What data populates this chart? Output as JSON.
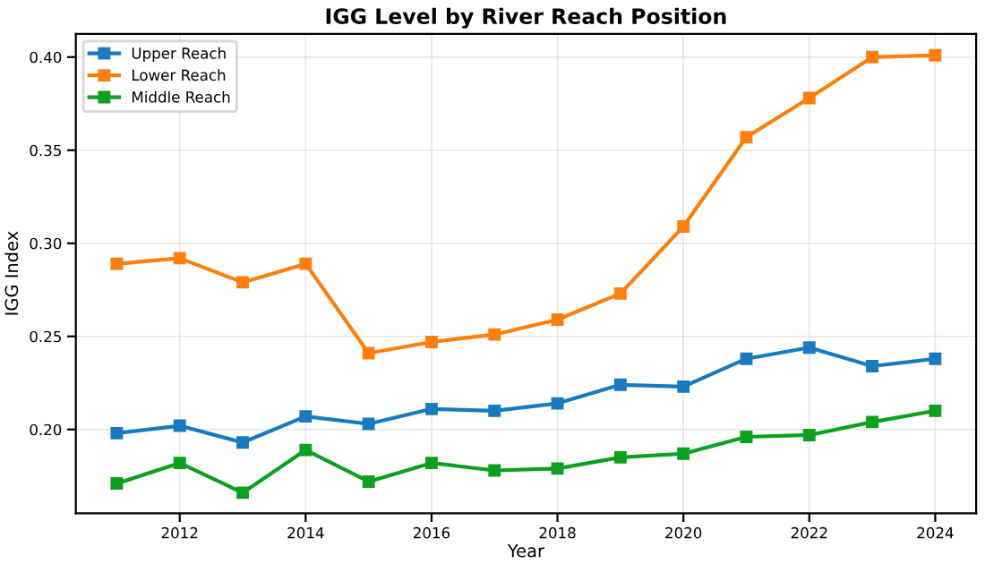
{
  "chart_data": {
    "type": "line",
    "title": "IGG Level by River Reach Position",
    "xlabel": "Year",
    "ylabel": "IGG Index",
    "x": [
      2011,
      2012,
      2013,
      2014,
      2015,
      2016,
      2017,
      2018,
      2019,
      2020,
      2021,
      2022,
      2023,
      2024
    ],
    "series": [
      {
        "name": "Upper Reach",
        "color": "#1a7abf",
        "values": [
          0.198,
          0.202,
          0.193,
          0.207,
          0.203,
          0.211,
          0.21,
          0.214,
          0.224,
          0.223,
          0.238,
          0.244,
          0.234,
          0.238
        ]
      },
      {
        "name": "Lower Reach",
        "color": "#ff7f0e",
        "values": [
          0.289,
          0.292,
          0.279,
          0.289,
          0.241,
          0.247,
          0.251,
          0.259,
          0.273,
          0.309,
          0.357,
          0.378,
          0.4,
          0.401
        ]
      },
      {
        "name": "Middle Reach",
        "color": "#0ca01e",
        "values": [
          0.171,
          0.182,
          0.166,
          0.189,
          0.172,
          0.182,
          0.178,
          0.179,
          0.185,
          0.187,
          0.196,
          0.197,
          0.204,
          0.21
        ]
      }
    ],
    "xlim": [
      2010.35,
      2024.65
    ],
    "xticks": [
      2012,
      2014,
      2016,
      2018,
      2020,
      2022,
      2024
    ],
    "ylim": [
      0.155,
      0.4125
    ],
    "yticks": [
      {
        "value": 0.2,
        "label": "0.20"
      },
      {
        "value": 0.25,
        "label": "0.25"
      },
      {
        "value": 0.3,
        "label": "0.30"
      },
      {
        "value": 0.35,
        "label": "0.35"
      },
      {
        "value": 0.4,
        "label": "0.40"
      }
    ],
    "grid": true,
    "legend": "top left",
    "marker": "square",
    "line_style": "solid"
  }
}
